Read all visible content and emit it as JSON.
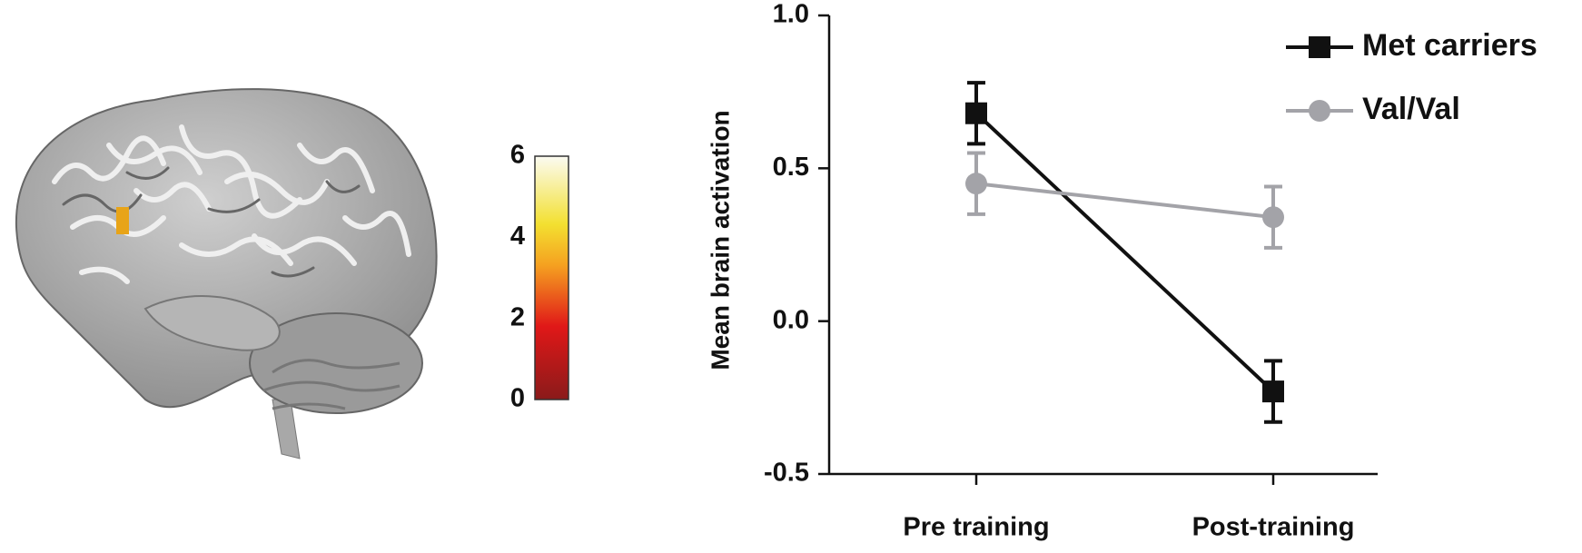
{
  "chart_data": {
    "type": "line",
    "categories": [
      "Pre training",
      "Post-training"
    ],
    "series": [
      {
        "name": "Met carriers",
        "color": "#111111",
        "marker": "square",
        "values": [
          0.68,
          -0.23
        ],
        "errors": [
          0.1,
          0.1
        ]
      },
      {
        "name": "Val/Val",
        "color": "#a3a3a8",
        "marker": "circle",
        "values": [
          0.45,
          0.34
        ],
        "errors": [
          0.1,
          0.1
        ]
      }
    ],
    "ylabel": "Mean brain activation",
    "ylim": [
      -0.5,
      1.0
    ],
    "yticks": [
      {
        "value": -0.5,
        "label": "-0.5"
      },
      {
        "value": 0,
        "label": "0.0"
      },
      0.5,
      {
        "value": 1.0,
        "label": "1.0"
      }
    ],
    "legend": "upper right"
  },
  "colorbar": {
    "lim": [
      0,
      6
    ],
    "ticks": [
      0,
      2,
      4,
      6
    ]
  }
}
